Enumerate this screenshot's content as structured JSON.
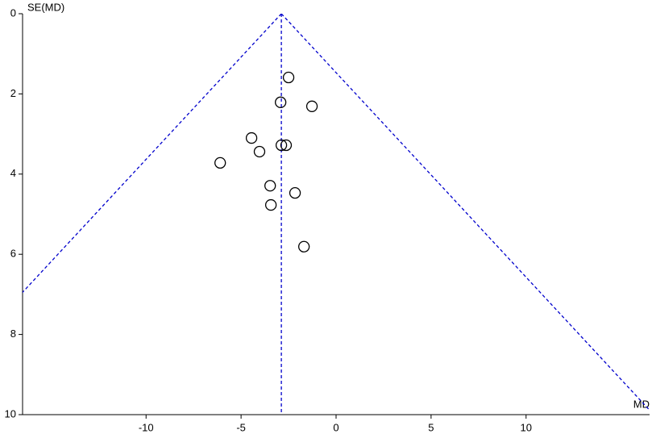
{
  "chart_data": {
    "type": "funnel",
    "x_label": "MD",
    "y_label": "SE(MD)",
    "x": [
      -2.5,
      -2.92,
      -1.27,
      -4.45,
      -2.88,
      -2.63,
      -4.03,
      -6.1,
      -3.47,
      -2.16,
      -3.43,
      -1.69
    ],
    "values": [
      1.59,
      2.21,
      2.31,
      3.1,
      3.28,
      3.28,
      3.44,
      3.72,
      4.29,
      4.47,
      4.77,
      5.81
    ],
    "pooled_md": -2.88,
    "color": "#000000",
    "line_color": "#0000cc",
    "xlim": [
      -16.5,
      16.5
    ],
    "xticks": [
      -10,
      -5,
      0,
      5,
      10
    ],
    "ylim": [
      0,
      10
    ],
    "yticks": [
      0,
      2,
      4,
      6,
      8,
      10
    ],
    "y_inverted": true
  }
}
